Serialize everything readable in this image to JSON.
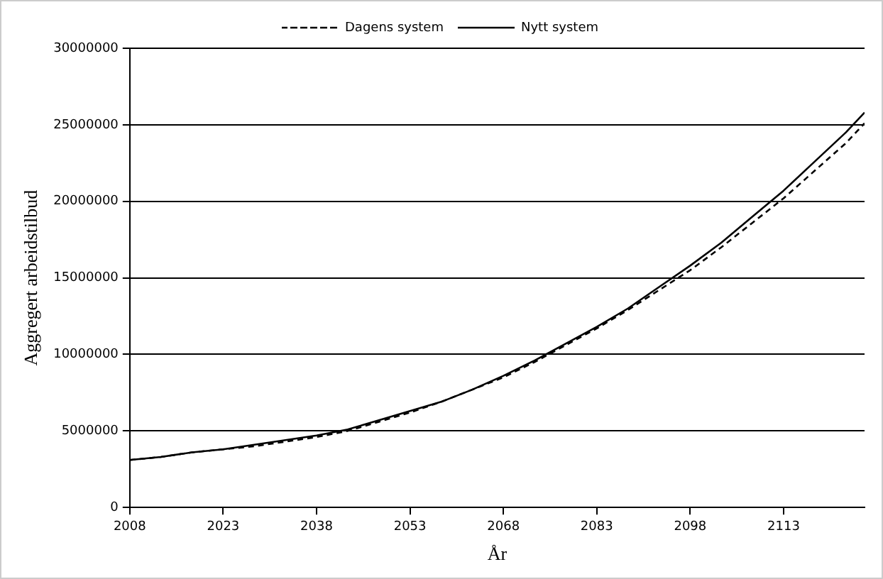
{
  "chart_data": {
    "type": "line",
    "xlabel": "År",
    "ylabel": "Aggregert arbeidstilbud",
    "x": [
      2008,
      2013,
      2018,
      2023,
      2028,
      2033,
      2038,
      2043,
      2048,
      2053,
      2058,
      2063,
      2068,
      2073,
      2078,
      2083,
      2088,
      2093,
      2098,
      2103,
      2108,
      2113,
      2118,
      2123,
      2126
    ],
    "series": [
      {
        "name": "Dagens system",
        "color": "#000000",
        "line_style": "dashed",
        "values": [
          3100000,
          3300000,
          3600000,
          3800000,
          4000000,
          4300000,
          4600000,
          5000000,
          5600000,
          6200000,
          6900000,
          7700000,
          8500000,
          9500000,
          10600000,
          11700000,
          12900000,
          14200000,
          15500000,
          17000000,
          18600000,
          20200000,
          22000000,
          23800000,
          25100000
        ]
      },
      {
        "name": "Nytt system",
        "color": "#000000",
        "line_style": "solid",
        "values": [
          3100000,
          3300000,
          3600000,
          3800000,
          4100000,
          4400000,
          4700000,
          5100000,
          5700000,
          6300000,
          6900000,
          7700000,
          8600000,
          9600000,
          10700000,
          11800000,
          13000000,
          14400000,
          15800000,
          17300000,
          19000000,
          20700000,
          22600000,
          24500000,
          25800000
        ]
      }
    ],
    "xlim": [
      2008,
      2126
    ],
    "xticks": [
      2008,
      2023,
      2038,
      2053,
      2068,
      2083,
      2098,
      2113
    ],
    "ylim": [
      0,
      30000000
    ],
    "yticks": [
      0,
      5000000,
      10000000,
      15000000,
      20000000,
      25000000,
      30000000
    ],
    "grid": "y",
    "legend": "top",
    "marker": "none"
  }
}
